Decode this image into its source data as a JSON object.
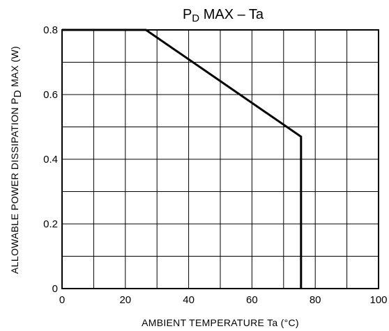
{
  "chart_data": {
    "type": "line",
    "title": {
      "main": "P",
      "sub": "D",
      "rest": " MAX  –  Ta"
    },
    "xlabel": "AMBIENT TEMPERATURE    Ta    (°C)",
    "ylabel": {
      "main": "ALLOWABLE POWER DISSIPATION   P",
      "sub": "D",
      "rest": " MAX    (W)"
    },
    "xlim": [
      0,
      100
    ],
    "ylim": [
      0,
      0.8
    ],
    "x_ticks": [
      0,
      20,
      40,
      60,
      80,
      100
    ],
    "x_tick_labels": [
      "0",
      "20",
      "40",
      "60",
      "80",
      "100"
    ],
    "y_ticks": [
      0,
      0.2,
      0.4,
      0.6,
      0.8
    ],
    "y_tick_labels": [
      "0",
      "0.2",
      "0.4",
      "0.6",
      "0.8"
    ],
    "grid": true,
    "x_grid_step": 10,
    "y_grid_step": 0.1,
    "series": [
      {
        "x": [
          0,
          26.5,
          75.5,
          75.5
        ],
        "y": [
          0.8,
          0.8,
          0.47,
          0
        ],
        "color": "#000000"
      }
    ]
  }
}
